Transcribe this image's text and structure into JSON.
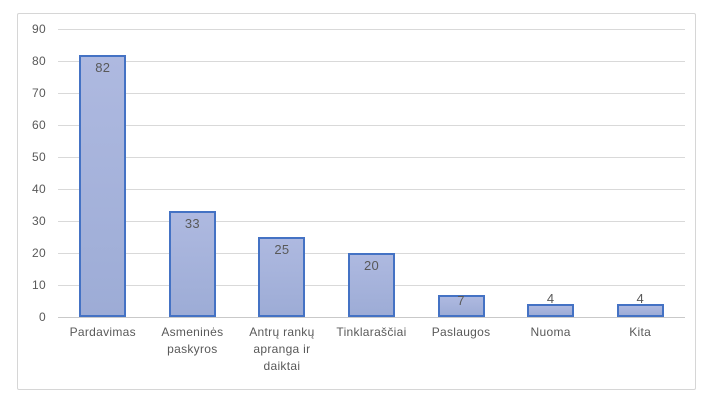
{
  "chart_data": {
    "type": "bar",
    "categories": [
      "Pardavimas",
      "Asmeninės paskyros",
      "Antrų rankų apranga ir daiktai",
      "Tinklaraščiai",
      "Paslaugos",
      "Nuoma",
      "Kita"
    ],
    "values": [
      82,
      33,
      25,
      20,
      7,
      4,
      4
    ],
    "data_labels": [
      "82",
      "33",
      "25",
      "20",
      "7",
      "4",
      "4"
    ],
    "title": "",
    "xlabel": "",
    "ylabel": "",
    "ylim": [
      0,
      90
    ],
    "ytick_step": 10,
    "ytick_labels": [
      "0",
      "10",
      "20",
      "30",
      "40",
      "50",
      "60",
      "70",
      "80",
      "90"
    ],
    "grid": true,
    "legend": false
  },
  "colors": {
    "background": "#ffffff",
    "frame_border": "#d6d6d6",
    "gridline": "#d9d9d9",
    "axis_line": "#c9c9c9",
    "bar_fill_top": "#aeb9e0",
    "bar_fill_bottom": "#9dacd6",
    "bar_border": "#4472c4",
    "text": "#595959"
  }
}
